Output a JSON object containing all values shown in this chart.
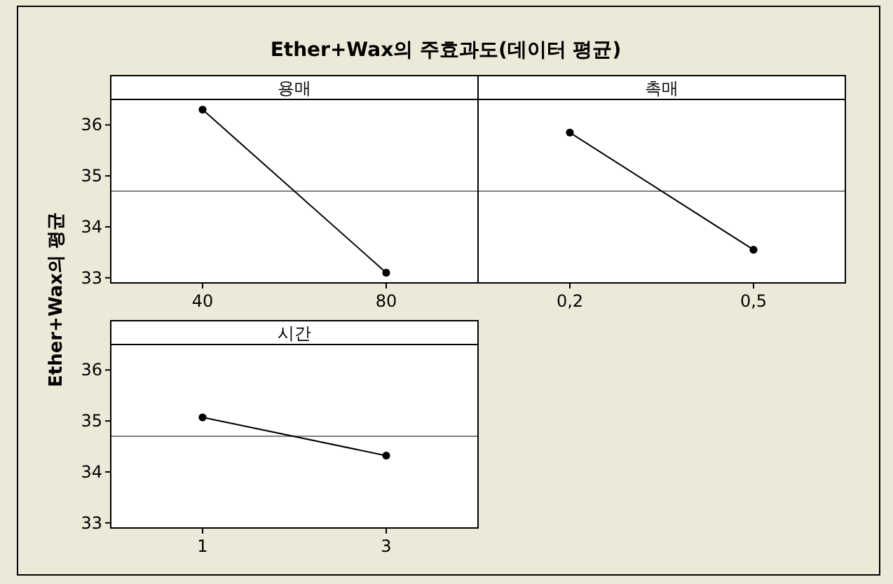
{
  "chart_data": [
    {
      "type": "line",
      "title": "Ether+Wax의 주효과도(데이터 평균)",
      "xlabel": "용매",
      "ylabel": "Ether+Wax의 평균",
      "categories": [
        "40",
        "80"
      ],
      "series": [
        {
          "color": "#000000",
          "values": [
            36.3,
            33.1
          ]
        }
      ],
      "ylim": [
        32.9,
        36.5
      ],
      "yticks": [
        33,
        34,
        35,
        36
      ],
      "ref_lines": [
        {
          "axis": "y",
          "value": 34.7,
          "color": "#808080"
        }
      ],
      "marker": "circle"
    },
    {
      "type": "line",
      "xlabel": "촉매",
      "categories": [
        "0,2",
        "0,5"
      ],
      "series": [
        {
          "color": "#000000",
          "values": [
            35.85,
            33.55
          ]
        }
      ],
      "ylim": [
        32.9,
        36.5
      ],
      "yticks": [
        33,
        34,
        35,
        36
      ],
      "ref_lines": [
        {
          "axis": "y",
          "value": 34.7,
          "color": "#808080"
        }
      ],
      "marker": "circle",
      "tick_labels": "x"
    },
    {
      "type": "line",
      "xlabel": "시간",
      "categories": [
        "1",
        "3"
      ],
      "series": [
        {
          "color": "#000000",
          "values": [
            35.07,
            34.32
          ]
        }
      ],
      "ylim": [
        32.9,
        36.5
      ],
      "yticks": [
        33,
        34,
        35,
        36
      ],
      "ref_lines": [
        {
          "axis": "y",
          "value": 34.7,
          "color": "#808080"
        }
      ],
      "marker": "circle"
    }
  ]
}
